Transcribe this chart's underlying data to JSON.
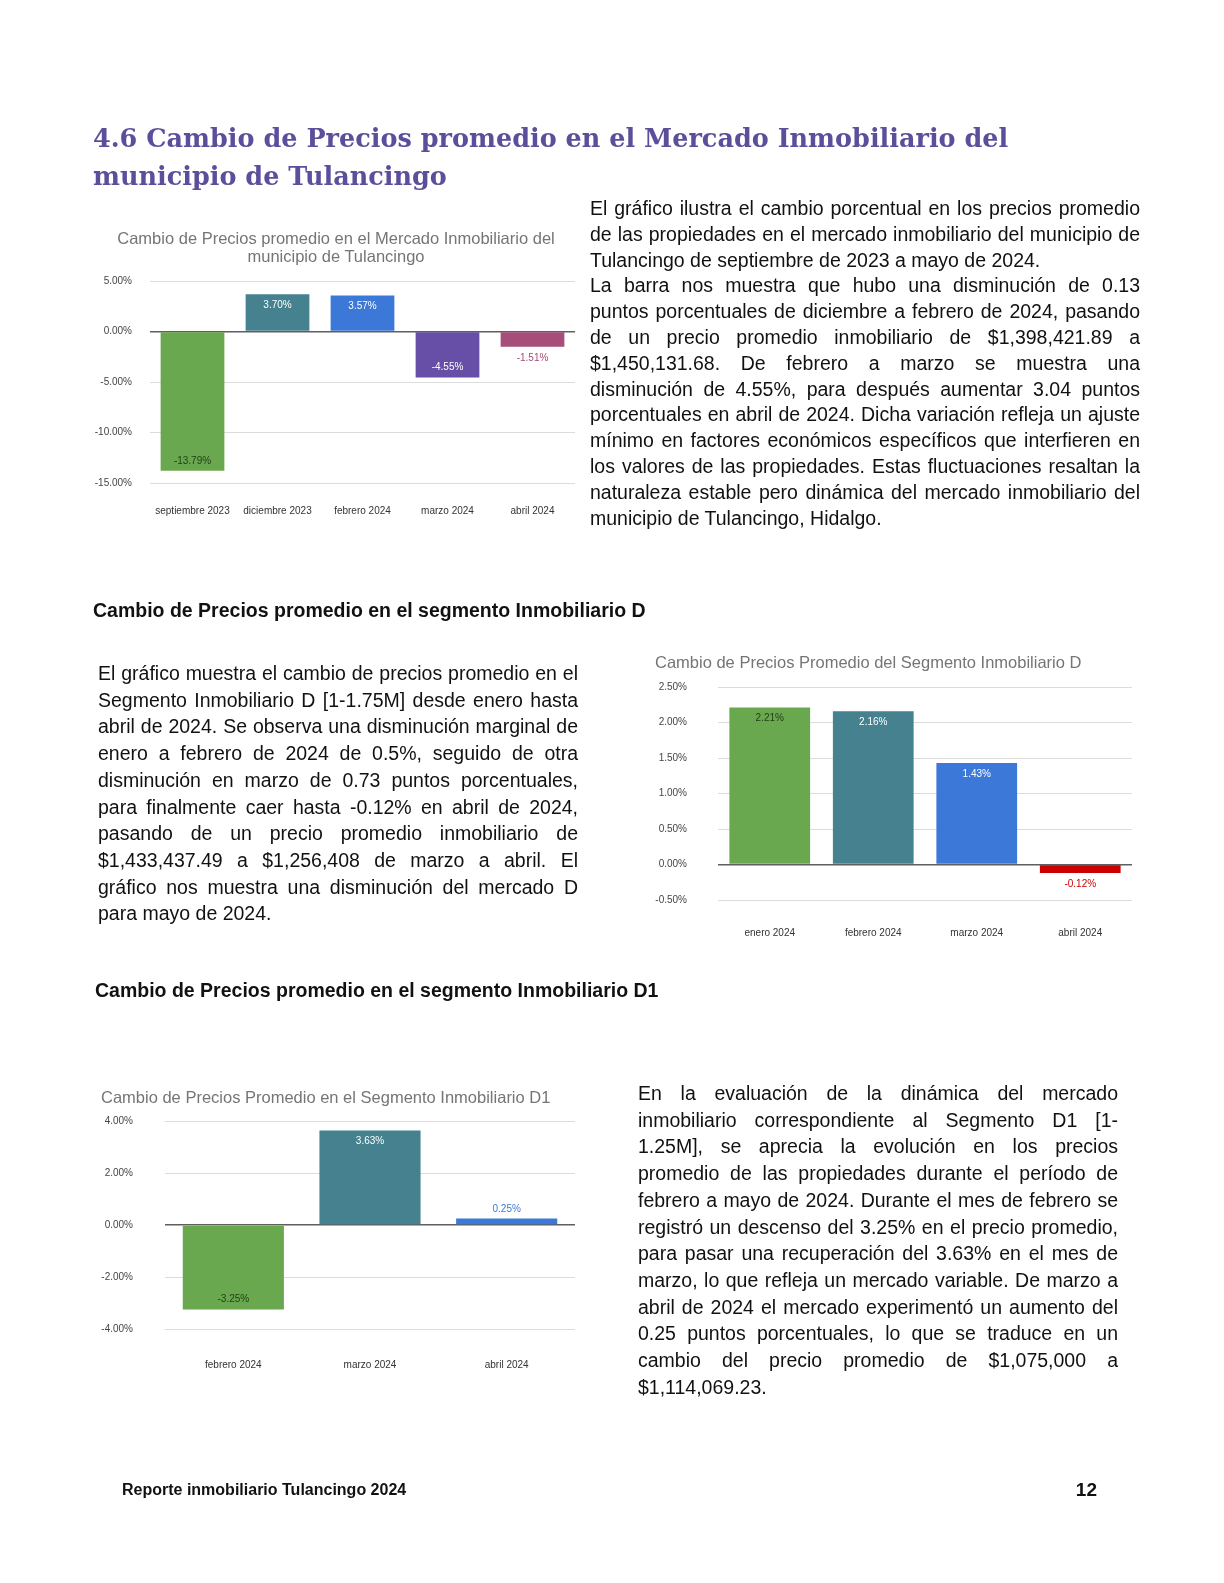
{
  "chart_data": [
    {
      "type": "bar",
      "title": "Cambio de Precios promedio en el Mercado Inmobiliario del municipio de Tulancingo",
      "categories": [
        "septiembre 2023",
        "diciembre 2023",
        "febrero 2024",
        "marzo 2024",
        "abril 2024"
      ],
      "values": [
        -13.79,
        3.7,
        3.57,
        -4.55,
        -1.51
      ],
      "colors": [
        "#6aa84f",
        "#45818e",
        "#3c78d8",
        "#674ea7",
        "#a64d79"
      ],
      "value_labels": [
        "-13.79%",
        "3.70%",
        "3.57%",
        "-4.55%",
        "-1.51%"
      ],
      "ylim": [
        -15,
        5
      ],
      "yticks": [
        {
          "value": -15,
          "label": "-15.00%"
        },
        {
          "value": -10,
          "label": "-10.00%"
        },
        {
          "value": -5,
          "label": "-5.00%"
        },
        {
          "value": 0,
          "label": "0.00%"
        },
        {
          "value": 5,
          "label": "5.00%"
        }
      ],
      "grid": "y",
      "annotations": [
        "4.6 Cambio de Precios promedio en el Mercado Inmobiliario del municipio de Tulancingo",
        "El gráfico ilustra el cambio porcentual en los precios promedio de las propiedades en el mercado inmobiliario del municipio de Tulancingo de septiembre de 2023 a mayo de 2024.",
        "La barra nos muestra que hubo una disminución de 0.13 puntos porcentuales de diciembre a febrero de 2024, pasando de un precio promedio inmobiliario de $1,398,421.89 a $1,450,131.68. De febrero a marzo se muestra una disminución de 4.55%, para después aumentar 3.04 puntos porcentuales en abril de 2024. Dicha variación refleja un ajuste mínimo en factores económicos específicos que interfieren en los valores de las propiedades. Estas fluctuaciones resaltan la naturaleza estable pero dinámica del mercado inmobiliario del municipio de Tulancingo, Hidalgo."
      ]
    },
    {
      "type": "bar",
      "title": "Cambio de Precios Promedio del Segmento Inmobiliario D",
      "categories": [
        "enero 2024",
        "febrero 2024",
        "marzo 2024",
        "abril 2024"
      ],
      "values": [
        2.21,
        2.16,
        1.43,
        -0.12
      ],
      "colors": [
        "#6aa84f",
        "#45818e",
        "#3c78d8",
        "#cc0000"
      ],
      "value_labels": [
        "2.21%",
        "2.16%",
        "1.43%",
        "-0.12%"
      ],
      "ylim": [
        -0.5,
        2.5
      ],
      "yticks": [
        {
          "value": -0.5,
          "label": "-0.50%"
        },
        {
          "value": 0,
          "label": "0.00%"
        },
        {
          "value": 0.5,
          "label": "0.50%"
        },
        {
          "value": 1,
          "label": "1.00%"
        },
        {
          "value": 1.5,
          "label": "1.50%"
        },
        {
          "value": 2,
          "label": "2.00%"
        },
        {
          "value": 2.5,
          "label": "2.50%"
        }
      ],
      "grid": "y",
      "annotations": [
        "Cambio de Precios promedio en el segmento Inmobiliario D",
        "El gráfico muestra el cambio de precios promedio en el Segmento Inmobiliario D [1-1.75M] desde enero hasta abril de 2024. Se observa una disminución marginal de enero a febrero de 2024 de 0.5%, seguido de otra disminución en marzo de 0.73 puntos porcentuales, para finalmente caer hasta -0.12% en abril de 2024, pasando de un precio promedio inmobiliario de $1,433,437.49 a $1,256,408 de marzo a abril. El gráfico nos muestra una disminución del mercado D para mayo de 2024."
      ]
    },
    {
      "type": "bar",
      "title": "Cambio de Precios Promedio en el Segmento Inmobiliario D1",
      "categories": [
        "febrero 2024",
        "marzo 2024",
        "abril 2024"
      ],
      "values": [
        -3.25,
        3.63,
        0.25
      ],
      "colors": [
        "#6aa84f",
        "#45818e",
        "#3c78d8"
      ],
      "value_labels": [
        "-3.25%",
        "3.63%",
        "0.25%"
      ],
      "ylim": [
        -4,
        4
      ],
      "yticks": [
        {
          "value": -4,
          "label": "-4.00%"
        },
        {
          "value": -2,
          "label": "-2.00%"
        },
        {
          "value": 0,
          "label": "0.00%"
        },
        {
          "value": 2,
          "label": "2.00%"
        },
        {
          "value": 4,
          "label": "4.00%"
        }
      ],
      "grid": "y",
      "annotations": [
        "Cambio de Precios promedio en el segmento Inmobiliario D1",
        "En la evaluación de la dinámica del mercado inmobiliario correspondiente al Segmento D1 [1-1.25M], se aprecia la evolución en los precios promedio de las propiedades durante el período de febrero a mayo de 2024. Durante el mes de febrero se registró un descenso del 3.25% en el precio promedio, para pasar una recuperación del 3.63% en el mes de marzo, lo que refleja un mercado variable. De marzo a abril de 2024 el mercado experimentó un aumento del 0.25 puntos porcentuales, lo que se traduce en un cambio del precio promedio de $1,075,000 a $1,114,069.23.",
        "Reporte inmobiliario Tulancingo 2024",
        "12"
      ]
    }
  ]
}
